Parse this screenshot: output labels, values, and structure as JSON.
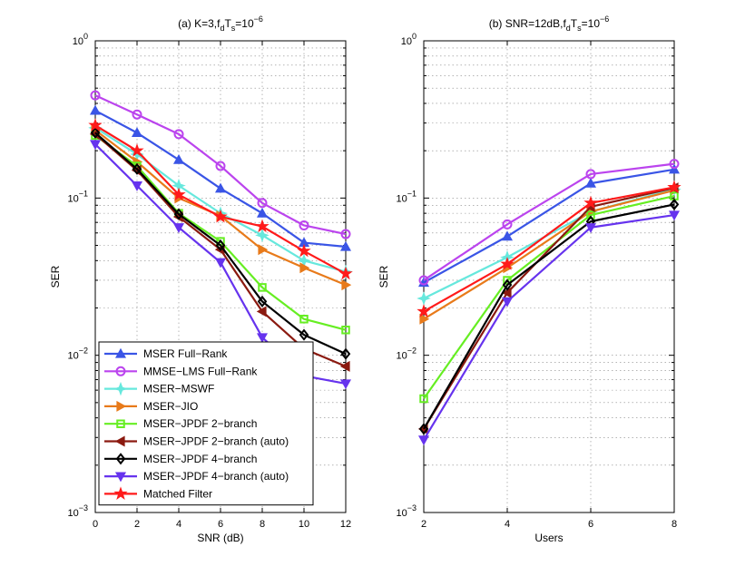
{
  "chart_data": [
    {
      "type": "line",
      "title": "(a) K=3,f",
      "title_parts": {
        "prefix": "(a) K=3,f",
        "sub1": "d",
        "mid": "T",
        "sub2": "s",
        "eq": "=10",
        "sup": "−6"
      },
      "xlabel": "SNR (dB)",
      "ylabel": "SER",
      "yscale": "log",
      "xlim": [
        0,
        12
      ],
      "ylim": [
        0.001,
        1
      ],
      "x": [
        0,
        2,
        4,
        6,
        8,
        10,
        12
      ],
      "xticks": [
        "0",
        "2",
        "4",
        "6",
        "8",
        "10",
        "12"
      ],
      "yticks": [
        {
          "base": "10",
          "exp": "0"
        },
        {
          "base": "10",
          "exp": "−1"
        },
        {
          "base": "10",
          "exp": "−2"
        },
        {
          "base": "10",
          "exp": "−3"
        }
      ],
      "grid": true,
      "legend_position": "bottom-left",
      "series": [
        {
          "name": "MSER Full−Rank",
          "color": "#3a55e6",
          "marker": "triangle-up",
          "values": [
            0.36,
            0.26,
            0.175,
            0.115,
            0.08,
            0.052,
            0.049
          ]
        },
        {
          "name": "MMSE−LMS Full−Rank",
          "color": "#bb44ee",
          "marker": "circle",
          "values": [
            0.45,
            0.34,
            0.255,
            0.16,
            0.093,
            0.067,
            0.059
          ]
        },
        {
          "name": "MSER−MSWF",
          "color": "#66e8dd",
          "marker": "star-left",
          "values": [
            0.28,
            0.19,
            0.12,
            0.08,
            0.058,
            0.04,
            0.034
          ]
        },
        {
          "name": "MSER−JIO",
          "color": "#e87a1a",
          "marker": "triangle-right",
          "values": [
            0.27,
            0.17,
            0.1,
            0.077,
            0.047,
            0.036,
            0.028
          ]
        },
        {
          "name": "MSER−JPDF 2−branch",
          "color": "#66ee22",
          "marker": "square",
          "values": [
            0.25,
            0.16,
            0.08,
            0.053,
            0.027,
            0.017,
            0.0145
          ]
        },
        {
          "name": "MSER−JPDF 2−branch (auto)",
          "color": "#8b1a10",
          "marker": "triangle-left",
          "values": [
            0.255,
            0.15,
            0.076,
            0.047,
            0.019,
            0.011,
            0.0085
          ]
        },
        {
          "name": "MSER−JPDF 4−branch",
          "color": "#000000",
          "marker": "diamond",
          "values": [
            0.26,
            0.153,
            0.079,
            0.05,
            0.022,
            0.0135,
            0.0102
          ]
        },
        {
          "name": "MSER−JPDF 4−branch (auto)",
          "color": "#6633ee",
          "marker": "triangle-down",
          "values": [
            0.22,
            0.12,
            0.065,
            0.039,
            0.013,
            0.0074,
            0.0066
          ]
        },
        {
          "name": "Matched Filter",
          "color": "#ff1a1a",
          "marker": "hexagram",
          "values": [
            0.29,
            0.2,
            0.105,
            0.076,
            0.066,
            0.046,
            0.033
          ]
        }
      ]
    },
    {
      "type": "line",
      "title": "(b) SNR=12dB,f",
      "title_parts": {
        "prefix": "(b) SNR=12dB,f",
        "sub1": "d",
        "mid": "T",
        "sub2": "s",
        "eq": "=10",
        "sup": "−6"
      },
      "xlabel": "Users",
      "ylabel": "SER",
      "yscale": "log",
      "xlim": [
        2,
        8
      ],
      "ylim": [
        0.001,
        1
      ],
      "x": [
        2,
        4,
        6,
        8
      ],
      "xticks": [
        "2",
        "4",
        "6",
        "8"
      ],
      "yticks": [
        {
          "base": "10",
          "exp": "0"
        },
        {
          "base": "10",
          "exp": "−1"
        },
        {
          "base": "10",
          "exp": "−2"
        },
        {
          "base": "10",
          "exp": "−3"
        }
      ],
      "grid": true,
      "series": [
        {
          "name": "MSER Full−Rank",
          "color": "#3a55e6",
          "marker": "triangle-up",
          "values": [
            0.029,
            0.057,
            0.124,
            0.152
          ]
        },
        {
          "name": "MMSE−LMS Full−Rank",
          "color": "#bb44ee",
          "marker": "circle",
          "values": [
            0.03,
            0.068,
            0.142,
            0.165
          ]
        },
        {
          "name": "MSER−MSWF",
          "color": "#66e8dd",
          "marker": "star-left",
          "values": [
            0.023,
            0.042,
            0.082,
            0.114
          ]
        },
        {
          "name": "MSER−JIO",
          "color": "#e87a1a",
          "marker": "triangle-right",
          "values": [
            0.017,
            0.036,
            0.082,
            0.112
          ]
        },
        {
          "name": "MSER−JPDF 2−branch",
          "color": "#66ee22",
          "marker": "square",
          "values": [
            0.0053,
            0.03,
            0.078,
            0.103
          ]
        },
        {
          "name": "MSER−JPDF 2−branch (auto)",
          "color": "#8b1a10",
          "marker": "triangle-left",
          "values": [
            0.0034,
            0.025,
            0.088,
            0.116
          ]
        },
        {
          "name": "MSER−JPDF 4−branch",
          "color": "#000000",
          "marker": "diamond",
          "values": [
            0.0034,
            0.028,
            0.071,
            0.091
          ]
        },
        {
          "name": "MSER−JPDF 4−branch (auto)",
          "color": "#6633ee",
          "marker": "triangle-down",
          "values": [
            0.0029,
            0.022,
            0.065,
            0.078
          ]
        },
        {
          "name": "Matched Filter",
          "color": "#ff1a1a",
          "marker": "hexagram",
          "values": [
            0.019,
            0.038,
            0.093,
            0.117
          ]
        }
      ]
    }
  ]
}
